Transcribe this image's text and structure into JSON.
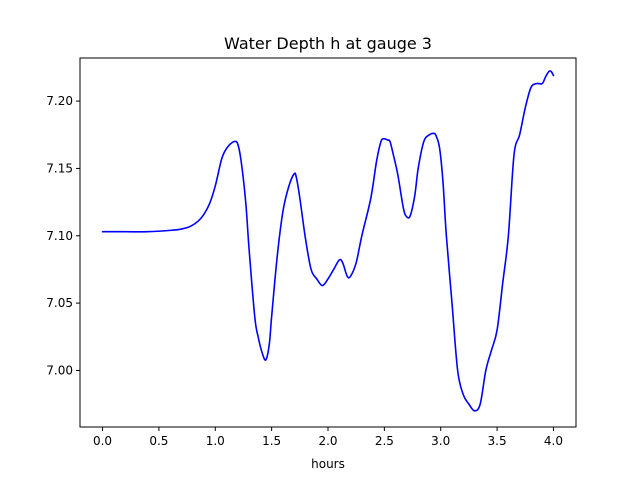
{
  "chart_data": {
    "type": "line",
    "title": "Water Depth h at gauge 3",
    "xlabel": "hours",
    "ylabel": "",
    "xlim": [
      -0.2,
      4.2
    ],
    "ylim": [
      6.958,
      7.232
    ],
    "xticks": [
      0.0,
      0.5,
      1.0,
      1.5,
      2.0,
      2.5,
      3.0,
      3.5,
      4.0
    ],
    "xtick_labels": [
      "0.0",
      "0.5",
      "1.0",
      "1.5",
      "2.0",
      "2.5",
      "3.0",
      "3.5",
      "4.0"
    ],
    "yticks": [
      7.0,
      7.05,
      7.1,
      7.15,
      7.2
    ],
    "ytick_labels": [
      "7.00",
      "7.05",
      "7.10",
      "7.15",
      "7.20"
    ],
    "grid": false,
    "series": [
      {
        "color": "#0000ff",
        "x": [
          0.0,
          0.2,
          0.4,
          0.6,
          0.7,
          0.78,
          0.85,
          0.9,
          0.95,
          1.0,
          1.05,
          1.08,
          1.12,
          1.17,
          1.2,
          1.23,
          1.27,
          1.3,
          1.35,
          1.38,
          1.42,
          1.45,
          1.48,
          1.5,
          1.55,
          1.6,
          1.65,
          1.7,
          1.72,
          1.75,
          1.8,
          1.85,
          1.9,
          1.95,
          2.0,
          2.05,
          2.1,
          2.13,
          2.17,
          2.2,
          2.25,
          2.3,
          2.38,
          2.43,
          2.47,
          2.5,
          2.53,
          2.55,
          2.58,
          2.62,
          2.67,
          2.7,
          2.73,
          2.77,
          2.8,
          2.85,
          2.9,
          2.94,
          2.96,
          2.99,
          3.02,
          3.05,
          3.1,
          3.15,
          3.2,
          3.25,
          3.3,
          3.35,
          3.4,
          3.45,
          3.5,
          3.55,
          3.6,
          3.65,
          3.7,
          3.75,
          3.8,
          3.85,
          3.9,
          3.93,
          3.96,
          3.98,
          4.0
        ],
        "y": [
          7.103,
          7.103,
          7.103,
          7.104,
          7.105,
          7.107,
          7.111,
          7.116,
          7.124,
          7.137,
          7.155,
          7.162,
          7.167,
          7.17,
          7.168,
          7.155,
          7.125,
          7.09,
          7.04,
          7.025,
          7.012,
          7.008,
          7.02,
          7.04,
          7.085,
          7.118,
          7.136,
          7.146,
          7.143,
          7.128,
          7.098,
          7.075,
          7.068,
          7.063,
          7.068,
          7.075,
          7.082,
          7.08,
          7.07,
          7.07,
          7.08,
          7.1,
          7.128,
          7.155,
          7.17,
          7.172,
          7.171,
          7.17,
          7.16,
          7.145,
          7.12,
          7.114,
          7.115,
          7.13,
          7.15,
          7.17,
          7.175,
          7.176,
          7.174,
          7.165,
          7.14,
          7.1,
          7.05,
          7.0,
          6.982,
          6.975,
          6.97,
          6.975,
          7.0,
          7.015,
          7.03,
          7.065,
          7.1,
          7.16,
          7.175,
          7.195,
          7.21,
          7.213,
          7.213,
          7.218,
          7.222,
          7.222,
          7.219
        ]
      }
    ]
  }
}
